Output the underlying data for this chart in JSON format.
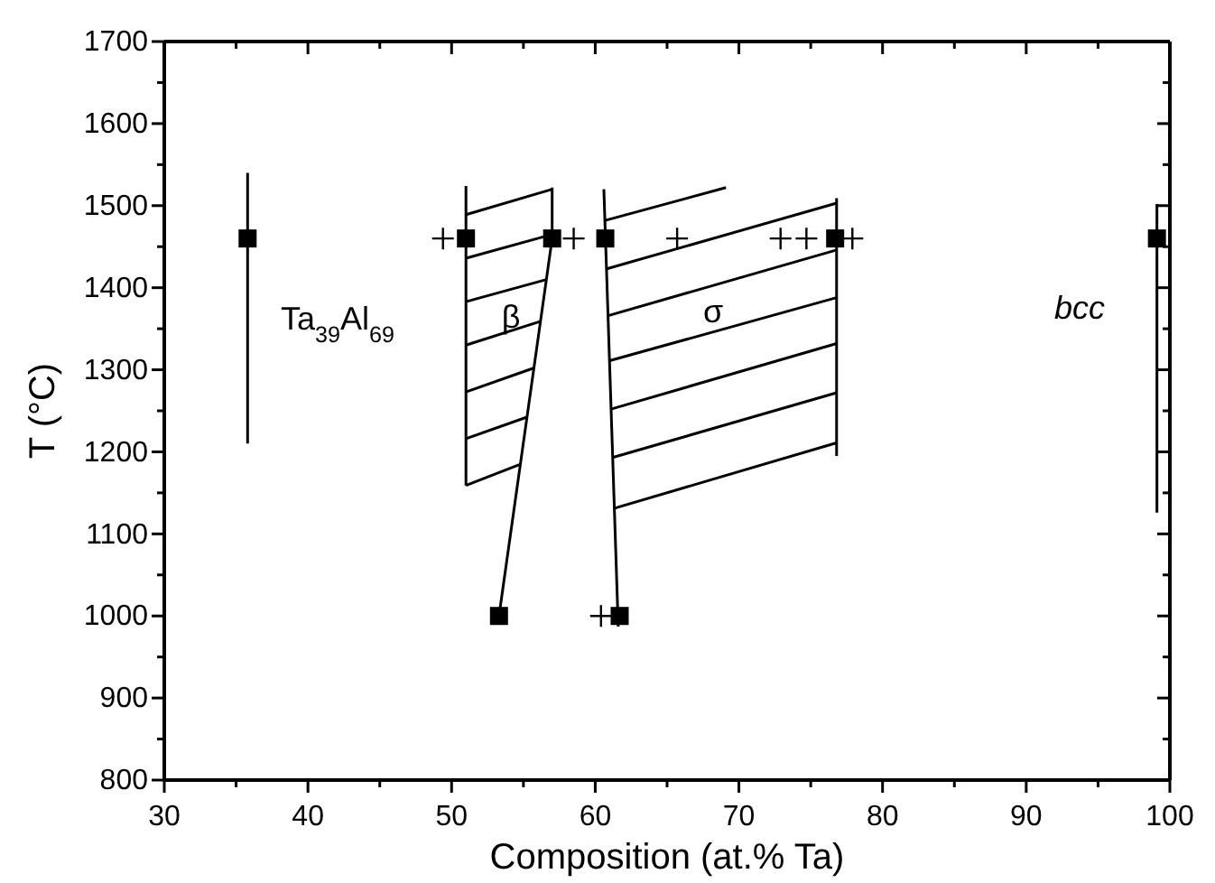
{
  "chart_data": {
    "type": "scatter",
    "xlabel": "Composition (at.% Ta)",
    "ylabel": "T (°C)",
    "xlim": [
      30,
      100
    ],
    "ylim": [
      800,
      1700
    ],
    "xticks": [
      30,
      {
        "value": 35,
        "label": null
      },
      40,
      {
        "value": 45,
        "label": null
      },
      50,
      {
        "value": 55,
        "label": null
      },
      60,
      {
        "value": 65,
        "label": null
      },
      70,
      {
        "value": 75,
        "label": null
      },
      80,
      {
        "value": 85,
        "label": null
      },
      90,
      {
        "value": 95,
        "label": null
      },
      100
    ],
    "yticks": [
      800,
      {
        "value": 850,
        "label": null
      },
      900,
      {
        "value": 950,
        "label": null
      },
      1000,
      {
        "value": 1050,
        "label": null
      },
      1100,
      {
        "value": 1150,
        "label": null
      },
      1200,
      {
        "value": 1250,
        "label": null
      },
      1300,
      {
        "value": 1350,
        "label": null
      },
      1400,
      {
        "value": 1450,
        "label": null
      },
      1500,
      {
        "value": 1550,
        "label": null
      },
      1600,
      {
        "value": 1650,
        "label": null
      },
      1700
    ],
    "grid": false,
    "series": [
      {
        "type": "line",
        "color": "#000000",
        "x": [
          35.8,
          35.8
        ],
        "values": [
          1540,
          1210
        ]
      },
      {
        "type": "line",
        "color": "#000000",
        "x": [
          99.1,
          99.1
        ],
        "values": [
          1502,
          1126
        ]
      },
      {
        "type": "line",
        "color": "#000000",
        "x": [
          51,
          51
        ],
        "values": [
          1524,
          1159
        ]
      },
      {
        "type": "line",
        "color": "#000000",
        "x": [
          57,
          57,
          53.3
        ],
        "values": [
          1522,
          1460,
          1000
        ]
      },
      {
        "type": "line",
        "color": "#000000",
        "x": [
          51,
          57
        ],
        "values": [
          1489,
          1520
        ]
      },
      {
        "type": "line",
        "color": "#000000",
        "x": [
          51,
          57
        ],
        "values": [
          1436,
          1465
        ]
      },
      {
        "type": "line",
        "color": "#000000",
        "x": [
          51,
          56.6
        ],
        "values": [
          1383,
          1410
        ]
      },
      {
        "type": "line",
        "color": "#000000",
        "x": [
          51,
          56.2
        ],
        "values": [
          1330,
          1359
        ]
      },
      {
        "type": "line",
        "color": "#000000",
        "x": [
          51,
          55.7
        ],
        "values": [
          1273,
          1302
        ]
      },
      {
        "type": "line",
        "color": "#000000",
        "x": [
          51,
          55.2
        ],
        "values": [
          1216,
          1242
        ]
      },
      {
        "type": "line",
        "color": "#000000",
        "x": [
          51,
          54.8
        ],
        "values": [
          1159,
          1185
        ]
      },
      {
        "type": "line",
        "color": "#000000",
        "x": [
          60.6,
          61.6
        ],
        "values": [
          1520,
          987
        ]
      },
      {
        "type": "line",
        "color": "#000000",
        "x": [
          76.8,
          76.8
        ],
        "values": [
          1509,
          1195
        ]
      },
      {
        "type": "line",
        "color": "#000000",
        "x": [
          60.7,
          69.1
        ],
        "values": [
          1482,
          1522
        ]
      },
      {
        "type": "line",
        "color": "#000000",
        "x": [
          60.8,
          76.8
        ],
        "values": [
          1423,
          1503
        ]
      },
      {
        "type": "line",
        "color": "#000000",
        "x": [
          60.9,
          76.8
        ],
        "values": [
          1366,
          1446
        ]
      },
      {
        "type": "line",
        "color": "#000000",
        "x": [
          61.0,
          76.8
        ],
        "values": [
          1311,
          1388
        ]
      },
      {
        "type": "line",
        "color": "#000000",
        "x": [
          61.1,
          76.8
        ],
        "values": [
          1252,
          1332
        ]
      },
      {
        "type": "line",
        "color": "#000000",
        "x": [
          61.2,
          76.8
        ],
        "values": [
          1193,
          1272
        ]
      },
      {
        "type": "line",
        "color": "#000000",
        "x": [
          61.3,
          76.8
        ],
        "values": [
          1131,
          1211
        ]
      },
      {
        "color": "#000000",
        "marker": "cross",
        "x": [
          49.4,
          58.5,
          65.7,
          72.9,
          74.7,
          77.9,
          60.4
        ],
        "values": [
          1460,
          1460,
          1460,
          1460,
          1460,
          1460,
          1000
        ]
      },
      {
        "color": "#000000",
        "marker": "square",
        "x": [
          35.8,
          51,
          57,
          60.7,
          76.7,
          99.1,
          53.3,
          61.7
        ],
        "values": [
          1460,
          1460,
          1460,
          1460,
          1460,
          1460,
          1000,
          1000
        ]
      }
    ],
    "annotations": [
      "Ta$_{39}$Al$_{69}$",
      "β",
      "σ",
      "bcc"
    ]
  }
}
